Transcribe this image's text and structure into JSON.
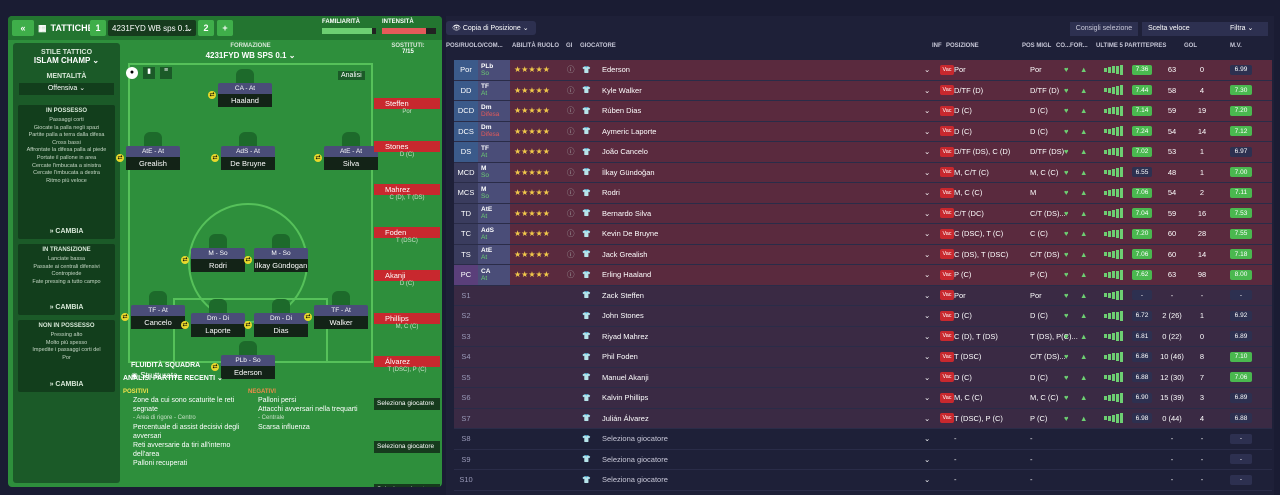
{
  "header": {
    "back": "«",
    "tactics_label": "TATTICHE",
    "tactic1_num": "1",
    "tactic1_name": "4231FYD WB sps 0.1",
    "tactic2_num": "2",
    "add": "+",
    "familiarity": "FAMILIARITÀ",
    "intensity": "INTENSITÀ"
  },
  "sidebar": {
    "style_title": "STILE TATTICO",
    "style": "ISLAM CHAMP",
    "mentality_title": "MENTALITÀ",
    "mentality": "Offensiva",
    "in_possession": {
      "title": "IN POSSESSO",
      "items": [
        "Passaggi corti",
        "Giocate la palla negli spazi",
        "Partite palla a terra dalla difesa",
        "Cross bassi",
        "Affrontate la difesa palla al piede",
        "Portate il pallone in area",
        "Cercate l'imbucata a sinistra",
        "Cercate l'imbucata a destra",
        "Ritmo più veloce"
      ],
      "button": "CAMBIA"
    },
    "transition": {
      "title": "IN TRANSIZIONE",
      "items": [
        "Lanciate bassa",
        "Passate ai centrali difensivi",
        "Contropiede",
        "Fate pressing a tutto campo"
      ],
      "button": "CAMBIA"
    },
    "out_possession": {
      "title": "NON IN POSSESSO",
      "items": [
        "Pressing alto",
        "Molto più spesso",
        "Impedite i passaggi corti del",
        "Por"
      ],
      "button": "CAMBIA"
    }
  },
  "formation": {
    "label": "FORMAZIONE",
    "name": "4231FYD WB SPS 0.1",
    "analysis": "Analisi",
    "fluidity_label": "FLUIDITÀ SQUADRA",
    "fluidity": "Strutturata",
    "players": [
      {
        "role": "CA - At",
        "name": "Haaland"
      },
      {
        "role": "AtE - At",
        "name": "Grealish"
      },
      {
        "role": "AdS - At",
        "name": "De Bruyne"
      },
      {
        "role": "AtE - At",
        "name": "Silva"
      },
      {
        "role": "M - So",
        "name": "Rodri"
      },
      {
        "role": "M - So",
        "name": "Ilkay Gündogan"
      },
      {
        "role": "TF - At",
        "name": "Cancelo"
      },
      {
        "role": "Dm - Di",
        "name": "Laporte"
      },
      {
        "role": "Dm - Di",
        "name": "Dias"
      },
      {
        "role": "TF - At",
        "name": "Walker"
      },
      {
        "role": "PLb - So",
        "name": "Ederson"
      }
    ]
  },
  "subs": {
    "title": "SOSTITUTI:",
    "count": "7/15",
    "players": [
      {
        "name": "Steffen",
        "pos": "Por"
      },
      {
        "name": "Stones",
        "pos": "D (C)"
      },
      {
        "name": "Mahrez",
        "pos": "C (D), T (DS)"
      },
      {
        "name": "Foden",
        "pos": "T (DSC)"
      },
      {
        "name": "Akanji",
        "pos": "D (C)"
      },
      {
        "name": "Phillips",
        "pos": "M, C (C)"
      },
      {
        "name": "Álvarez",
        "pos": "T (DSC), P (C)"
      }
    ],
    "select": "Seleziona giocatore"
  },
  "analysis": {
    "title": "ANALISI PARTITE RECENTI",
    "pos_title": "POSITIVI",
    "neg_title": "NEGATIVI",
    "positives": [
      "Zone da cui sono scaturite le reti segnate",
      "- Area di rigore - Centro",
      "Percentuale di assist decisivi degli avversari",
      "Reti avversarie da tiri all'interno dell'area",
      "Palloni recuperati"
    ],
    "negatives": [
      "Palloni persi",
      "Attacchi avversari nella trequarti",
      "- Centrale",
      "Scarsa influenza"
    ]
  },
  "toolbar": {
    "copy_position": "Copia di Posizione",
    "advice": "Consigli selezione",
    "quick": "Scelta veloce",
    "filter": "Filtra"
  },
  "columns": {
    "pos": "POS/RUOLO/COM...",
    "ability": "ABILITÀ RUOLO",
    "gi": "GI",
    "player": "GIOCATORE",
    "inf": "INF",
    "position": "POSIZIONE",
    "best": "POS MIGL",
    "co": "CO...",
    "form": "FOR...",
    "last5": "ULTIME 5 PARTITE",
    "apps": "PRES",
    "goals": "GOL",
    "mv": "M.V."
  },
  "rows": [
    {
      "slot": "Por",
      "role": "PLb",
      "duty": "So",
      "name": "Ederson",
      "pos": "Por",
      "best": "Por",
      "apps": "63",
      "goals": "0",
      "mv": "6.99",
      "last": "7.36"
    },
    {
      "slot": "DD",
      "role": "TF",
      "duty": "At",
      "name": "Kyle Walker",
      "pos": "D/TF (D)",
      "best": "D/TF (D)",
      "apps": "58",
      "goals": "4",
      "mv": "7.30",
      "last": "7.44"
    },
    {
      "slot": "DCD",
      "role": "Dm",
      "duty": "Difesa",
      "name": "Rúben Dias",
      "pos": "D (C)",
      "best": "D (C)",
      "apps": "59",
      "goals": "19",
      "mv": "7.20",
      "last": "7.14"
    },
    {
      "slot": "DCS",
      "role": "Dm",
      "duty": "Difesa",
      "name": "Aymeric Laporte",
      "pos": "D (C)",
      "best": "D (C)",
      "apps": "54",
      "goals": "14",
      "mv": "7.12",
      "last": "7.24"
    },
    {
      "slot": "DS",
      "role": "TF",
      "duty": "At",
      "name": "João Cancelo",
      "pos": "D/TF (DS), C (D)",
      "best": "D/TF (DS)",
      "apps": "53",
      "goals": "1",
      "mv": "6.97",
      "last": "7.02"
    },
    {
      "slot": "MCD",
      "role": "M",
      "duty": "So",
      "name": "İlkay Gündoğan",
      "pos": "M, C/T (C)",
      "best": "M, C (C)",
      "apps": "48",
      "goals": "1",
      "mv": "7.00",
      "last": "6.55"
    },
    {
      "slot": "MCS",
      "role": "M",
      "duty": "So",
      "name": "Rodri",
      "pos": "M, C (C)",
      "best": "M",
      "apps": "54",
      "goals": "2",
      "mv": "7.11",
      "last": "7.06"
    },
    {
      "slot": "TD",
      "role": "AtE",
      "duty": "At",
      "name": "Bernardo Silva",
      "pos": "C/T (DC)",
      "best": "C/T (DS)...",
      "apps": "59",
      "goals": "16",
      "mv": "7.53",
      "last": "7.04"
    },
    {
      "slot": "TC",
      "role": "AdS",
      "duty": "At",
      "name": "Kevin De Bruyne",
      "pos": "C (DSC), T (C)",
      "best": "C (C)",
      "apps": "60",
      "goals": "28",
      "mv": "7.55",
      "last": "7.20"
    },
    {
      "slot": "TS",
      "role": "AtE",
      "duty": "At",
      "name": "Jack Grealish",
      "pos": "C (DS), T (DSC)",
      "best": "C/T (DS)",
      "apps": "60",
      "goals": "14",
      "mv": "7.18",
      "last": "7.06"
    },
    {
      "slot": "PC",
      "role": "CA",
      "duty": "At",
      "name": "Erling Haaland",
      "pos": "P (C)",
      "best": "P (C)",
      "apps": "63",
      "goals": "98",
      "mv": "8.00",
      "last": "7.62"
    },
    {
      "slot": "S1",
      "role": "",
      "duty": "",
      "name": "Zack Steffen",
      "pos": "Por",
      "best": "Por",
      "apps": "-",
      "goals": "-",
      "mv": "-",
      "last": "-"
    },
    {
      "slot": "S2",
      "role": "",
      "duty": "",
      "name": "John Stones",
      "pos": "D (C)",
      "best": "D (C)",
      "apps": "2 (26)",
      "goals": "1",
      "mv": "6.92",
      "last": "6.72"
    },
    {
      "slot": "S3",
      "role": "",
      "duty": "",
      "name": "Riyad Mahrez",
      "pos": "C (D), T (DS)",
      "best": "T (DS), P(C)...",
      "apps": "0 (22)",
      "goals": "0",
      "mv": "6.89",
      "last": "6.81"
    },
    {
      "slot": "S4",
      "role": "",
      "duty": "",
      "name": "Phil Foden",
      "pos": "T (DSC)",
      "best": "C/T (DS)...",
      "apps": "10 (46)",
      "goals": "8",
      "mv": "7.10",
      "last": "6.86"
    },
    {
      "slot": "S5",
      "role": "",
      "duty": "",
      "name": "Manuel Akanji",
      "pos": "D (C)",
      "best": "D (C)",
      "apps": "12 (30)",
      "goals": "7",
      "mv": "7.06",
      "last": "6.88"
    },
    {
      "slot": "S6",
      "role": "",
      "duty": "",
      "name": "Kalvin Phillips",
      "pos": "M, C (C)",
      "best": "M, C (C)",
      "apps": "15 (39)",
      "goals": "3",
      "mv": "6.89",
      "last": "6.90"
    },
    {
      "slot": "S7",
      "role": "",
      "duty": "",
      "name": "Julián Álvarez",
      "pos": "T (DSC), P (C)",
      "best": "P (C)",
      "apps": "0 (44)",
      "goals": "4",
      "mv": "6.88",
      "last": "6.98"
    },
    {
      "slot": "S8",
      "role": "",
      "duty": "",
      "name": "Seleziona giocatore",
      "pos": "-",
      "best": "-",
      "apps": "-",
      "goals": "-",
      "mv": "-",
      "last": ""
    },
    {
      "slot": "S9",
      "role": "",
      "duty": "",
      "name": "Seleziona giocatore",
      "pos": "-",
      "best": "-",
      "apps": "-",
      "goals": "-",
      "mv": "-",
      "last": ""
    },
    {
      "slot": "S10",
      "role": "",
      "duty": "",
      "name": "Seleziona giocatore",
      "pos": "-",
      "best": "-",
      "apps": "-",
      "goals": "-",
      "mv": "-",
      "last": ""
    }
  ],
  "stars": "★★★★★",
  "vac": "Vac"
}
